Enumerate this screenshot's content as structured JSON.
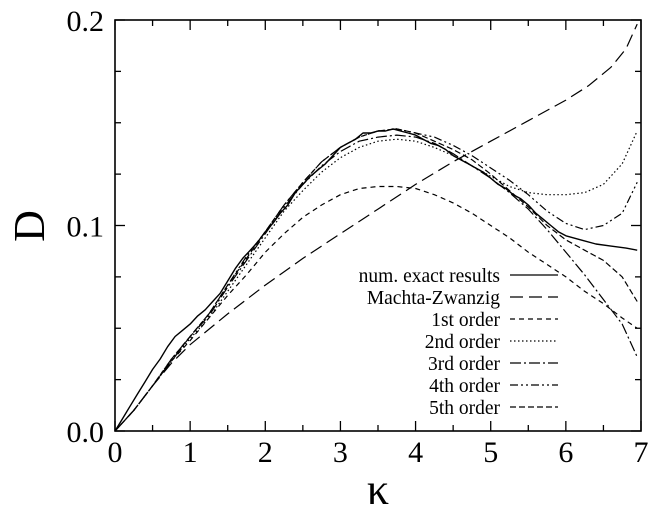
{
  "chart_data": {
    "type": "line",
    "xlabel": "κ",
    "ylabel": "D",
    "xlim": [
      0,
      7
    ],
    "ylim": [
      0,
      0.2
    ],
    "x_ticks": [
      "0",
      "1",
      "2",
      "3",
      "4",
      "5",
      "6",
      "7"
    ],
    "y_ticks": [
      "0.0",
      "0.1",
      "0.2"
    ],
    "legend_position": "bottom-right",
    "series": [
      {
        "name": "num. exact results",
        "dash": "",
        "points": [
          [
            0,
            0
          ],
          [
            0.1,
            0.006
          ],
          [
            0.2,
            0.012
          ],
          [
            0.3,
            0.018
          ],
          [
            0.4,
            0.024
          ],
          [
            0.5,
            0.03
          ],
          [
            0.6,
            0.035
          ],
          [
            0.7,
            0.041
          ],
          [
            0.8,
            0.046
          ],
          [
            0.9,
            0.049
          ],
          [
            1.0,
            0.052
          ],
          [
            1.1,
            0.056
          ],
          [
            1.2,
            0.059
          ],
          [
            1.3,
            0.063
          ],
          [
            1.4,
            0.067
          ],
          [
            1.5,
            0.073
          ],
          [
            1.6,
            0.079
          ],
          [
            1.7,
            0.084
          ],
          [
            1.8,
            0.088
          ],
          [
            1.9,
            0.092
          ],
          [
            2.0,
            0.097
          ],
          [
            2.1,
            0.101
          ],
          [
            2.2,
            0.106
          ],
          [
            2.3,
            0.11
          ],
          [
            2.4,
            0.116
          ],
          [
            2.5,
            0.12
          ],
          [
            2.6,
            0.124
          ],
          [
            2.7,
            0.127
          ],
          [
            2.8,
            0.13
          ],
          [
            2.9,
            0.134
          ],
          [
            3.0,
            0.138
          ],
          [
            3.1,
            0.14
          ],
          [
            3.2,
            0.142
          ],
          [
            3.3,
            0.145
          ],
          [
            3.4,
            0.145
          ],
          [
            3.5,
            0.146
          ],
          [
            3.6,
            0.146
          ],
          [
            3.7,
            0.147
          ],
          [
            3.8,
            0.146
          ],
          [
            3.9,
            0.145
          ],
          [
            4.0,
            0.144
          ],
          [
            4.1,
            0.142
          ],
          [
            4.2,
            0.14
          ],
          [
            4.3,
            0.139
          ],
          [
            4.4,
            0.137
          ],
          [
            4.5,
            0.134
          ],
          [
            4.6,
            0.132
          ],
          [
            4.7,
            0.13
          ],
          [
            4.8,
            0.128
          ],
          [
            4.9,
            0.126
          ],
          [
            5.0,
            0.123
          ],
          [
            5.1,
            0.12
          ],
          [
            5.2,
            0.118
          ],
          [
            5.3,
            0.115
          ],
          [
            5.4,
            0.113
          ],
          [
            5.5,
            0.11
          ],
          [
            5.6,
            0.106
          ],
          [
            5.7,
            0.103
          ],
          [
            5.8,
            0.1
          ],
          [
            5.9,
            0.097
          ],
          [
            6.0,
            0.095
          ],
          [
            6.2,
            0.093
          ],
          [
            6.4,
            0.091
          ],
          [
            6.6,
            0.09
          ],
          [
            6.8,
            0.089
          ],
          [
            6.95,
            0.088
          ]
        ]
      },
      {
        "name": "Machta-Zwanzig",
        "dash": "13 6",
        "points": [
          [
            0,
            0
          ],
          [
            0.25,
            0.01
          ],
          [
            0.5,
            0.022
          ],
          [
            0.75,
            0.033
          ],
          [
            1.0,
            0.042
          ],
          [
            1.5,
            0.057
          ],
          [
            2.0,
            0.071
          ],
          [
            2.5,
            0.084
          ],
          [
            3.0,
            0.096
          ],
          [
            3.5,
            0.108
          ],
          [
            4.0,
            0.12
          ],
          [
            4.5,
            0.131
          ],
          [
            5.0,
            0.141
          ],
          [
            5.5,
            0.151
          ],
          [
            6.0,
            0.161
          ],
          [
            6.3,
            0.168
          ],
          [
            6.6,
            0.177
          ],
          [
            6.8,
            0.186
          ],
          [
            6.95,
            0.198
          ]
        ]
      },
      {
        "name": "1st order",
        "dash": "5 4",
        "points": [
          [
            0,
            0
          ],
          [
            0.25,
            0.01
          ],
          [
            0.5,
            0.022
          ],
          [
            0.75,
            0.034
          ],
          [
            1.0,
            0.044
          ],
          [
            1.25,
            0.055
          ],
          [
            1.5,
            0.066
          ],
          [
            1.75,
            0.076
          ],
          [
            2.0,
            0.087
          ],
          [
            2.25,
            0.096
          ],
          [
            2.5,
            0.104
          ],
          [
            2.75,
            0.11
          ],
          [
            3.0,
            0.115
          ],
          [
            3.25,
            0.118
          ],
          [
            3.5,
            0.119
          ],
          [
            3.75,
            0.119
          ],
          [
            4.0,
            0.118
          ],
          [
            4.25,
            0.115
          ],
          [
            4.5,
            0.111
          ],
          [
            4.75,
            0.106
          ],
          [
            5.0,
            0.1
          ],
          [
            5.25,
            0.094
          ],
          [
            5.5,
            0.087
          ],
          [
            5.75,
            0.081
          ],
          [
            6.0,
            0.075
          ],
          [
            6.25,
            0.068
          ],
          [
            6.5,
            0.062
          ],
          [
            6.75,
            0.055
          ],
          [
            6.95,
            0.05
          ]
        ]
      },
      {
        "name": "2nd order",
        "dash": "1.5 2.5",
        "points": [
          [
            0,
            0
          ],
          [
            0.25,
            0.01
          ],
          [
            0.5,
            0.022
          ],
          [
            0.75,
            0.034
          ],
          [
            1.0,
            0.045
          ],
          [
            1.25,
            0.055
          ],
          [
            1.5,
            0.068
          ],
          [
            1.75,
            0.081
          ],
          [
            2.0,
            0.094
          ],
          [
            2.25,
            0.107
          ],
          [
            2.5,
            0.117
          ],
          [
            2.75,
            0.126
          ],
          [
            3.0,
            0.133
          ],
          [
            3.25,
            0.138
          ],
          [
            3.5,
            0.141
          ],
          [
            3.75,
            0.142
          ],
          [
            4.0,
            0.141
          ],
          [
            4.25,
            0.138
          ],
          [
            4.5,
            0.134
          ],
          [
            4.75,
            0.129
          ],
          [
            5.0,
            0.124
          ],
          [
            5.25,
            0.119
          ],
          [
            5.5,
            0.116
          ],
          [
            5.75,
            0.115
          ],
          [
            6.0,
            0.115
          ],
          [
            6.25,
            0.116
          ],
          [
            6.5,
            0.12
          ],
          [
            6.75,
            0.13
          ],
          [
            6.95,
            0.146
          ]
        ]
      },
      {
        "name": "3rd order",
        "dash": "11 3 2 3",
        "points": [
          [
            0,
            0
          ],
          [
            0.25,
            0.01
          ],
          [
            0.5,
            0.022
          ],
          [
            0.75,
            0.034
          ],
          [
            1.0,
            0.046
          ],
          [
            1.25,
            0.056
          ],
          [
            1.5,
            0.07
          ],
          [
            1.75,
            0.083
          ],
          [
            2.0,
            0.096
          ],
          [
            2.25,
            0.109
          ],
          [
            2.5,
            0.12
          ],
          [
            2.75,
            0.129
          ],
          [
            3.0,
            0.136
          ],
          [
            3.25,
            0.141
          ],
          [
            3.5,
            0.143
          ],
          [
            3.75,
            0.144
          ],
          [
            4.0,
            0.143
          ],
          [
            4.25,
            0.14
          ],
          [
            4.5,
            0.135
          ],
          [
            4.75,
            0.129
          ],
          [
            5.0,
            0.123
          ],
          [
            5.25,
            0.116
          ],
          [
            5.5,
            0.108
          ],
          [
            5.75,
            0.098
          ],
          [
            6.0,
            0.087
          ],
          [
            6.25,
            0.076
          ],
          [
            6.5,
            0.064
          ],
          [
            6.75,
            0.052
          ],
          [
            6.95,
            0.036
          ]
        ]
      },
      {
        "name": "4th order",
        "dash": "8 3 2 3 2 3",
        "points": [
          [
            0,
            0
          ],
          [
            0.25,
            0.01
          ],
          [
            0.5,
            0.022
          ],
          [
            0.75,
            0.035
          ],
          [
            1.0,
            0.046
          ],
          [
            1.25,
            0.057
          ],
          [
            1.5,
            0.071
          ],
          [
            1.75,
            0.085
          ],
          [
            2.0,
            0.097
          ],
          [
            2.25,
            0.11
          ],
          [
            2.5,
            0.121
          ],
          [
            2.75,
            0.131
          ],
          [
            3.0,
            0.138
          ],
          [
            3.25,
            0.143
          ],
          [
            3.5,
            0.146
          ],
          [
            3.75,
            0.147
          ],
          [
            4.0,
            0.145
          ],
          [
            4.25,
            0.143
          ],
          [
            4.5,
            0.139
          ],
          [
            4.75,
            0.134
          ],
          [
            5.0,
            0.128
          ],
          [
            5.25,
            0.122
          ],
          [
            5.5,
            0.115
          ],
          [
            5.75,
            0.107
          ],
          [
            6.0,
            0.101
          ],
          [
            6.25,
            0.098
          ],
          [
            6.5,
            0.1
          ],
          [
            6.75,
            0.106
          ],
          [
            6.95,
            0.121
          ]
        ]
      },
      {
        "name": "5th order",
        "dash": "6 3 6 3",
        "points": [
          [
            0,
            0
          ],
          [
            0.25,
            0.01
          ],
          [
            0.5,
            0.022
          ],
          [
            0.75,
            0.035
          ],
          [
            1.0,
            0.046
          ],
          [
            1.25,
            0.057
          ],
          [
            1.5,
            0.071
          ],
          [
            1.75,
            0.084
          ],
          [
            2.0,
            0.097
          ],
          [
            2.25,
            0.11
          ],
          [
            2.5,
            0.121
          ],
          [
            2.75,
            0.131
          ],
          [
            3.0,
            0.138
          ],
          [
            3.25,
            0.143
          ],
          [
            3.5,
            0.146
          ],
          [
            3.75,
            0.147
          ],
          [
            4.0,
            0.145
          ],
          [
            4.25,
            0.141
          ],
          [
            4.5,
            0.137
          ],
          [
            4.75,
            0.132
          ],
          [
            5.0,
            0.125
          ],
          [
            5.25,
            0.117
          ],
          [
            5.5,
            0.109
          ],
          [
            5.75,
            0.1
          ],
          [
            6.0,
            0.093
          ],
          [
            6.25,
            0.088
          ],
          [
            6.5,
            0.083
          ],
          [
            6.75,
            0.075
          ],
          [
            6.95,
            0.063
          ]
        ]
      }
    ]
  }
}
